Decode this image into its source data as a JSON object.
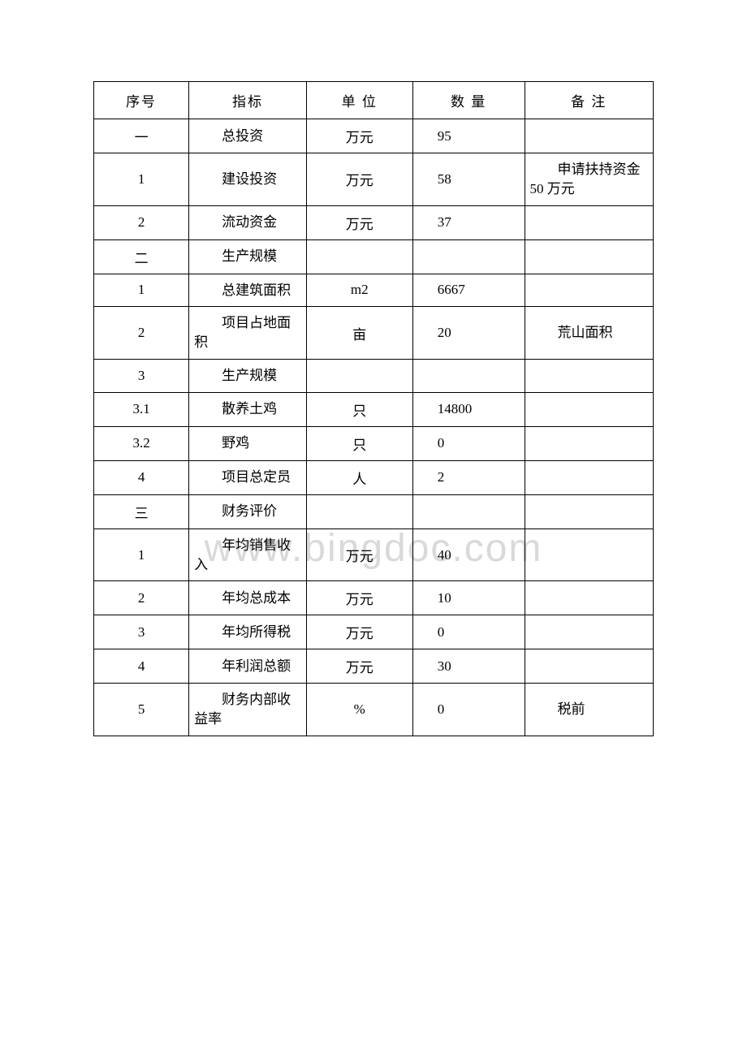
{
  "watermark": "www.bingdoc.com",
  "table": {
    "columns": [
      "序号",
      "指标",
      "单 位",
      "数 量",
      "备 注"
    ],
    "rows": [
      {
        "seq": "一",
        "indicator": "总投资",
        "unit": "万元",
        "qty": "95",
        "note": ""
      },
      {
        "seq": "1",
        "indicator": "建设投资",
        "unit": "万元",
        "qty": "58",
        "note": "申请扶持资金 50 万元"
      },
      {
        "seq": "2",
        "indicator": "流动资金",
        "unit": "万元",
        "qty": "37",
        "note": ""
      },
      {
        "seq": "二",
        "indicator": "生产规模",
        "unit": "",
        "qty": "",
        "note": ""
      },
      {
        "seq": "1",
        "indicator": "总建筑面积",
        "unit": "m2",
        "qty": "6667",
        "note": ""
      },
      {
        "seq": "2",
        "indicator": "项目占地面积",
        "unit": "亩",
        "qty": "20",
        "note": "荒山面积"
      },
      {
        "seq": "3",
        "indicator": "生产规模",
        "unit": "",
        "qty": "",
        "note": ""
      },
      {
        "seq": "3.1",
        "indicator": "散养土鸡",
        "unit": "只",
        "qty": "14800",
        "note": ""
      },
      {
        "seq": "3.2",
        "indicator": "野鸡",
        "unit": "只",
        "qty": "0",
        "note": ""
      },
      {
        "seq": "4",
        "indicator": "项目总定员",
        "unit": "人",
        "qty": "2",
        "note": ""
      },
      {
        "seq": "三",
        "indicator": "财务评价",
        "unit": "",
        "qty": "",
        "note": ""
      },
      {
        "seq": "1",
        "indicator": "年均销售收入",
        "unit": "万元",
        "qty": "40",
        "note": ""
      },
      {
        "seq": "2",
        "indicator": "年均总成本",
        "unit": "万元",
        "qty": "10",
        "note": ""
      },
      {
        "seq": "3",
        "indicator": "年均所得税",
        "unit": "万元",
        "qty": "0",
        "note": ""
      },
      {
        "seq": "4",
        "indicator": "年利润总额",
        "unit": "万元",
        "qty": "30",
        "note": ""
      },
      {
        "seq": "5",
        "indicator": "财务内部收益率",
        "unit": "%",
        "qty": "0",
        "note": "税前"
      }
    ],
    "border_color": "#000000",
    "background_color": "#ffffff",
    "font_size": 17,
    "text_color": "#000000"
  }
}
